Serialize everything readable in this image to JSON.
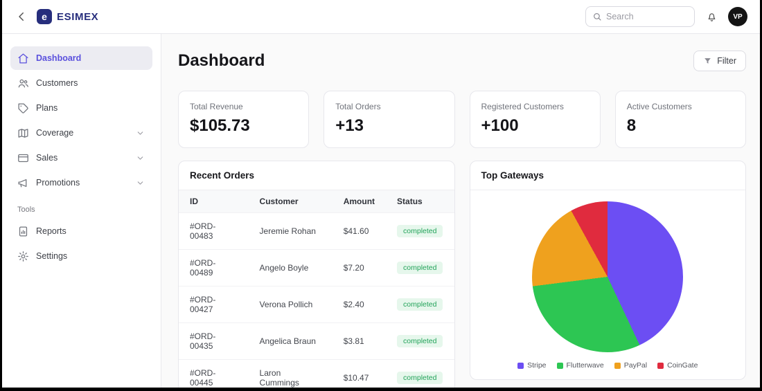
{
  "topbar": {
    "brand": "ESIMEX",
    "brand_mark": "e",
    "search_placeholder": "Search",
    "avatar_initials": "VP"
  },
  "sidebar": {
    "items": [
      {
        "label": "Dashboard",
        "icon": "home",
        "active": true,
        "expandable": false
      },
      {
        "label": "Customers",
        "icon": "users",
        "active": false,
        "expandable": false
      },
      {
        "label": "Plans",
        "icon": "tag",
        "active": false,
        "expandable": false
      },
      {
        "label": "Coverage",
        "icon": "map",
        "active": false,
        "expandable": true
      },
      {
        "label": "Sales",
        "icon": "card",
        "active": false,
        "expandable": true
      },
      {
        "label": "Promotions",
        "icon": "megaphone",
        "active": false,
        "expandable": true
      }
    ],
    "tools_label": "Tools",
    "tools_items": [
      {
        "label": "Reports",
        "icon": "report",
        "active": false,
        "expandable": false
      },
      {
        "label": "Settings",
        "icon": "gear",
        "active": false,
        "expandable": false
      }
    ]
  },
  "header": {
    "title": "Dashboard",
    "filter_label": "Filter"
  },
  "stats": [
    {
      "label": "Total Revenue",
      "value": "$105.73"
    },
    {
      "label": "Total Orders",
      "value": "+13"
    },
    {
      "label": "Registered Customers",
      "value": "+100"
    },
    {
      "label": "Active Customers",
      "value": "8"
    }
  ],
  "orders": {
    "title": "Recent Orders",
    "columns": [
      "ID",
      "Customer",
      "Amount",
      "Status"
    ],
    "rows": [
      {
        "id": "#ORD-00483",
        "customer": "Jeremie Rohan",
        "amount": "$41.60",
        "status": "completed"
      },
      {
        "id": "#ORD-00489",
        "customer": "Angelo Boyle",
        "amount": "$7.20",
        "status": "completed"
      },
      {
        "id": "#ORD-00427",
        "customer": "Verona Pollich",
        "amount": "$2.40",
        "status": "completed"
      },
      {
        "id": "#ORD-00435",
        "customer": "Angelica Braun",
        "amount": "$3.81",
        "status": "completed"
      },
      {
        "id": "#ORD-00445",
        "customer": "Laron Cummings",
        "amount": "$10.47",
        "status": "completed"
      }
    ],
    "status_colors": {
      "bg": "#e6f7ec",
      "text": "#23a35a"
    }
  },
  "gateways": {
    "title": "Top Gateways"
  },
  "chart_data": {
    "type": "pie",
    "title": "Top Gateways",
    "labels": [
      "Stripe",
      "Flutterwave",
      "PayPal",
      "CoinGate"
    ],
    "values": [
      43,
      30,
      19,
      8
    ],
    "colors": [
      "#6c4ef3",
      "#2dc653",
      "#efa11e",
      "#e02b3e"
    ],
    "legend_position": "bottom",
    "start_angle_deg": 0
  },
  "theme": {
    "accent": "#5a50dd",
    "brand_navy": "#272e7d",
    "main_bg": "#fafafa",
    "border": "#e7e7ec"
  }
}
